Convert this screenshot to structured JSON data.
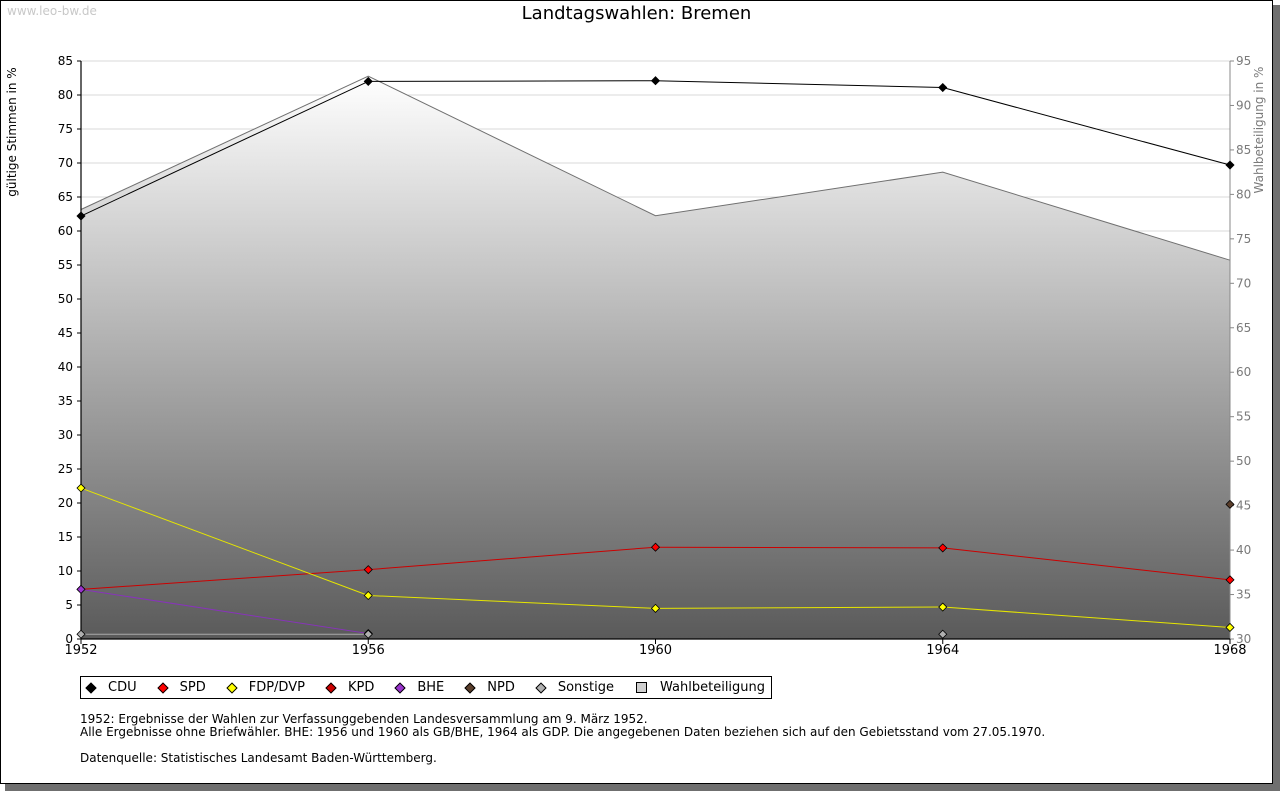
{
  "watermark": "www.leo-bw.de",
  "chart_data": {
    "type": "line",
    "title": "Landtagswahlen: Bremen",
    "ylabel": "gültige Stimmen in %",
    "y2label": "Wahlbeteiligung in %",
    "x": [
      1952,
      1956,
      1960,
      1964,
      1968
    ],
    "xticks": [
      "1952",
      "1956",
      "1960",
      "1964",
      "1968"
    ],
    "ylim": [
      0,
      85
    ],
    "yticks": [
      0,
      5,
      10,
      15,
      20,
      25,
      30,
      35,
      40,
      45,
      50,
      55,
      60,
      65,
      70,
      75,
      80,
      85
    ],
    "y2lim": [
      30,
      95
    ],
    "y2ticks": [
      30,
      35,
      40,
      45,
      50,
      55,
      60,
      65,
      70,
      75,
      80,
      85,
      90,
      95
    ],
    "series": [
      {
        "name": "CDU",
        "color": "#000000",
        "line": "#000000",
        "values": [
          62.2,
          82.0,
          82.1,
          81.1,
          69.7
        ]
      },
      {
        "name": "SPD",
        "color": "#ff0000",
        "line": "#cc0000",
        "values": [
          7.3,
          10.2,
          13.5,
          13.4,
          8.7
        ]
      },
      {
        "name": "FDP/DVP",
        "color": "#ffff00",
        "line": "#e6e600",
        "values": [
          22.2,
          6.4,
          4.5,
          4.7,
          1.7
        ]
      },
      {
        "name": "KPD",
        "color": "#cc0000",
        "line": "#cc0000",
        "values": [
          null,
          null,
          null,
          null,
          null
        ]
      },
      {
        "name": "BHE",
        "color": "#9933cc",
        "line": "#8833bb",
        "values": [
          7.3,
          0.8,
          null,
          null,
          null
        ]
      },
      {
        "name": "NPD",
        "color": "#5a3e2b",
        "line": "#5a3e2b",
        "values": [
          null,
          null,
          null,
          null,
          19.8
        ]
      },
      {
        "name": "Sonstige",
        "color": "#b0b0b0",
        "line": "#aaaaaa",
        "values": [
          0.7,
          0.7,
          null,
          0.7,
          null
        ]
      }
    ],
    "turnout": {
      "name": "Wahlbeteiligung",
      "color": "#cfcfcf",
      "values": [
        78.3,
        93.3,
        77.6,
        82.5,
        72.6
      ]
    },
    "legend": [
      "CDU",
      "SPD",
      "FDP/DVP",
      "KPD",
      "BHE",
      "NPD",
      "Sonstige",
      "Wahlbeteiligung"
    ]
  },
  "notes": {
    "line1": "1952: Ergebnisse der Wahlen zur Verfassunggebenden Landesversammlung am 9. März 1952.",
    "line2": "Alle Ergebnisse ohne Briefwähler. BHE: 1956 und 1960 als GB/BHE, 1964 als GDP. Die angegebenen Daten beziehen sich auf den Gebietsstand vom 27.05.1970.",
    "source": "Datenquelle: Statistisches Landesamt Baden-Württemberg."
  }
}
